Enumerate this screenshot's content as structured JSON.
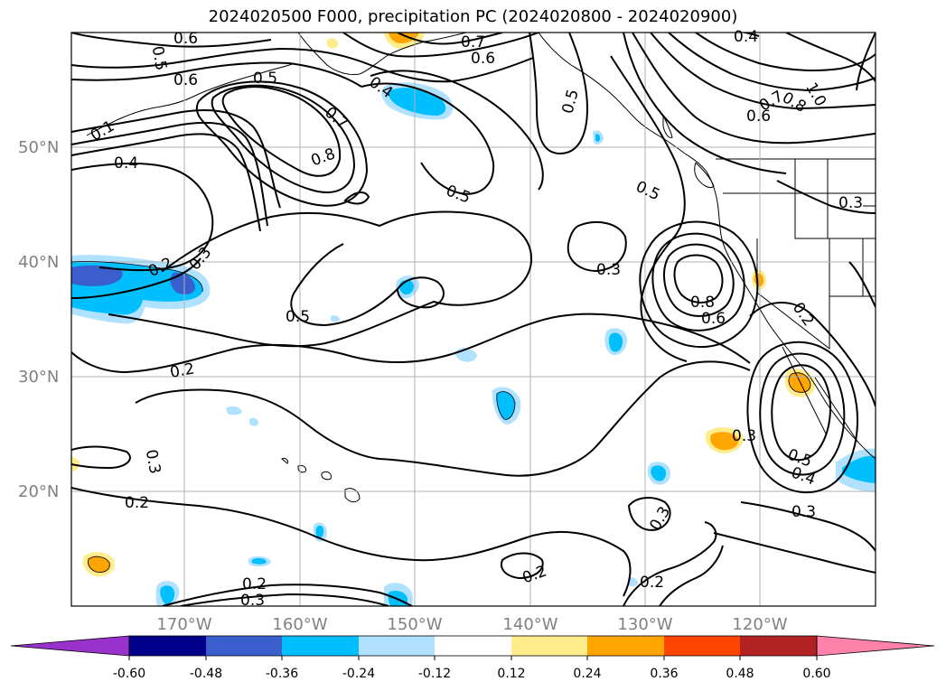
{
  "title": "2024020500 F000, precipitation PC (2024020800 - 2024020900)",
  "lat_labels": [
    "50°N",
    "40°N",
    "30°N",
    "20°N"
  ],
  "lon_labels": [
    "170°W",
    "160°W",
    "150°W",
    "140°W",
    "130°W",
    "120°W"
  ],
  "contour_labels": [
    "0.6",
    "0.5",
    "0.6",
    "0.7",
    "0.6",
    "0.4",
    "0.5",
    "0.4",
    "0.5",
    "0.1",
    "0.7",
    "0.4",
    "0.8",
    "0.5",
    "0.7",
    "0.8",
    "0.6",
    "1.0",
    "0.3",
    "0.2",
    "0.3",
    "0.5",
    "0.5",
    "0.3",
    "0.8",
    "0.6",
    "0.2",
    "0.2",
    "0.3",
    "0.3",
    "0.5",
    "0.4",
    "0.2",
    "0.3",
    "0.3",
    "0.2",
    "0.2",
    "0.2",
    "0.3"
  ],
  "colorbar": {
    "ticks": [
      "-0.60",
      "-0.48",
      "-0.36",
      "-0.24",
      "-0.12",
      "0.12",
      "0.24",
      "0.36",
      "0.48",
      "0.60"
    ],
    "colors": [
      "#9932cc",
      "#00008b",
      "#3a5fcd",
      "#00bfff",
      "#b0e2ff",
      "#ffffff",
      "#ffec8b",
      "#ffa500",
      "#ff4500",
      "#b22222",
      "#ff82ab"
    ]
  }
}
